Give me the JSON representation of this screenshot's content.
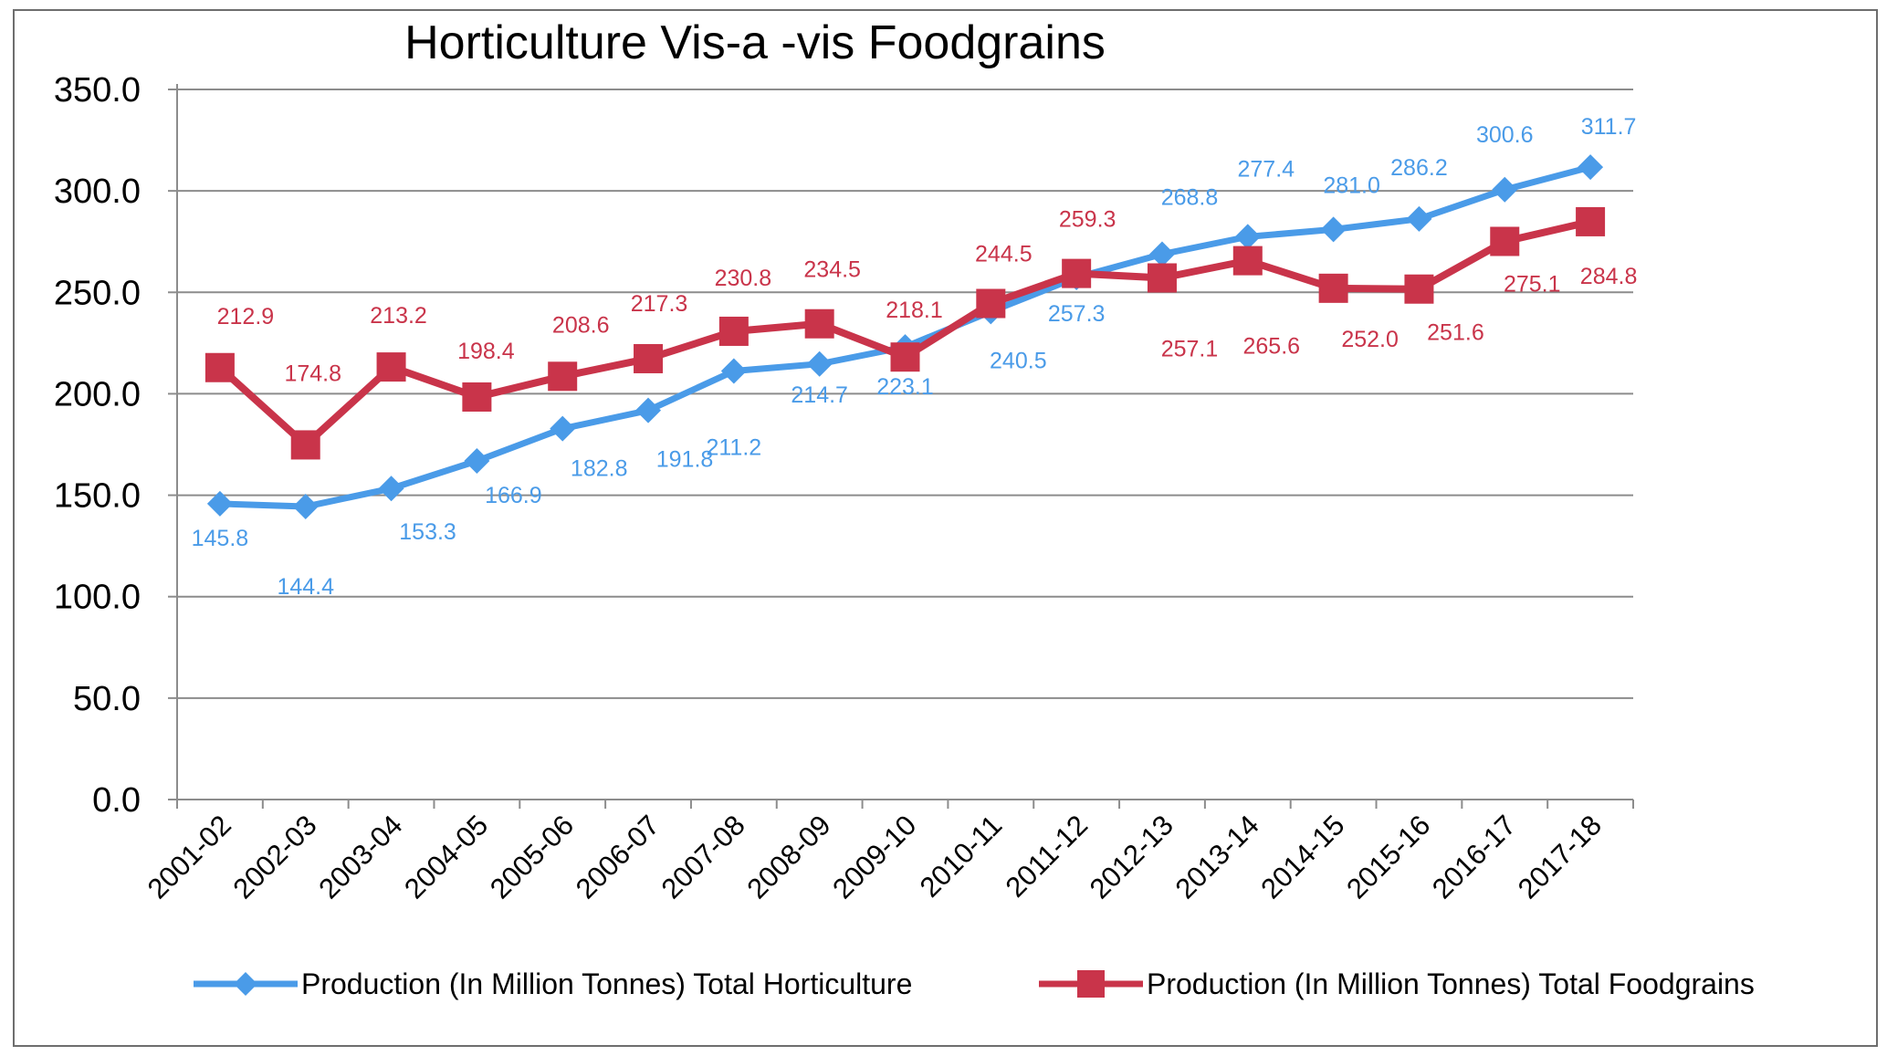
{
  "chart_data": {
    "type": "line",
    "title": "Horticulture Vis-a -vis Foodgrains",
    "xlabel": "",
    "ylabel": "",
    "categories": [
      "2001-02",
      "2002-03",
      "2003-04",
      "2004-05",
      "2005-06",
      "2006-07",
      "2007-08",
      "2008-09",
      "2009-10",
      "2010-11",
      "2011-12",
      "2012-13",
      "2013-14",
      "2014-15",
      "2015-16",
      "2016-17",
      "2017-18"
    ],
    "ylim": [
      0,
      350
    ],
    "yticks": [
      "0.0",
      "50.0",
      "100.0",
      "150.0",
      "200.0",
      "250.0",
      "300.0",
      "350.0"
    ],
    "grid": true,
    "legend_position": "bottom",
    "series": [
      {
        "name": "Production (In Million Tonnes) Total Horticulture",
        "color": "#4a9be8",
        "marker": "diamond",
        "values": [
          145.8,
          144.4,
          153.3,
          166.9,
          182.8,
          191.8,
          211.2,
          214.7,
          223.1,
          240.5,
          257.3,
          268.8,
          277.4,
          281.0,
          286.2,
          300.6,
          311.7
        ],
        "labels": [
          "145.8",
          "144.4",
          "153.3",
          "166.9",
          "182.8",
          "191.8",
          "211.2",
          "214.7",
          "223.1",
          "240.5",
          "257.3",
          "268.8",
          "277.4",
          "281.0",
          "286.2",
          "300.6",
          "311.7"
        ]
      },
      {
        "name": "Production (In Million Tonnes) Total Foodgrains",
        "color": "#c9344a",
        "marker": "square",
        "values": [
          212.9,
          174.8,
          213.2,
          198.4,
          208.6,
          217.3,
          230.8,
          234.5,
          218.1,
          244.5,
          259.3,
          257.1,
          265.6,
          252.0,
          251.6,
          275.1,
          284.8
        ],
        "labels": [
          "212.9",
          "174.8",
          "213.2",
          "198.4",
          "208.6",
          "217.3",
          "230.8",
          "234.5",
          "218.1",
          "244.5",
          "259.3",
          "257.1",
          "265.6",
          "252.0",
          "251.6",
          "275.1",
          "284.8"
        ]
      }
    ]
  }
}
